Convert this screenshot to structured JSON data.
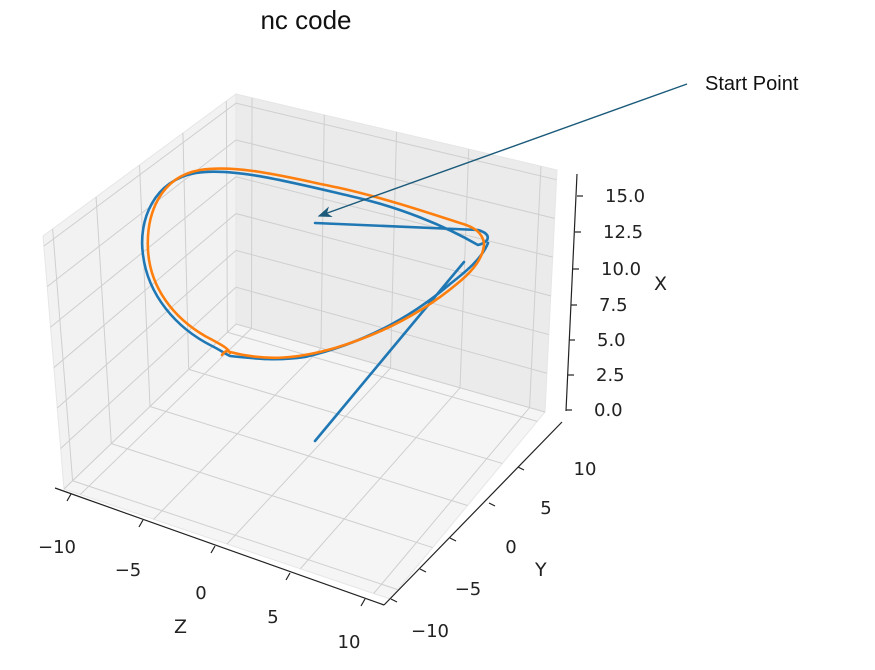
{
  "chart_data": {
    "type": "line3d",
    "title": "nc code",
    "xlabel": "Z",
    "ylabel": "Y",
    "zlabel": "X",
    "x_ticks": [
      "−10",
      "−5",
      "0",
      "5",
      "10"
    ],
    "y_ticks": [
      "−10",
      "−5",
      "0",
      "5",
      "10"
    ],
    "z_ticks": [
      "0.0",
      "2.5",
      "5.0",
      "7.5",
      "10.0",
      "12.5",
      "15.0"
    ],
    "xlim": [
      -12,
      12
    ],
    "ylim": [
      -12,
      12
    ],
    "zlim": [
      0,
      16
    ],
    "grid": true,
    "series": [
      {
        "color": "#1f77b4"
      },
      {
        "color": "#ff7f0e"
      }
    ],
    "annotation": {
      "text": "Start Point",
      "arrow_color": "#1b5a7a"
    }
  }
}
